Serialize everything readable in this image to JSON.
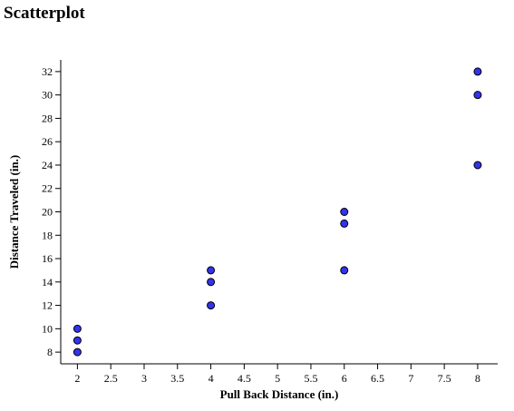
{
  "title": "Scatterplot",
  "chart_data": {
    "type": "scatter",
    "title": "Scatterplot",
    "xlabel": "Pull Back Distance (in.)",
    "ylabel": "Distance Traveled (in.)",
    "xlim": [
      1.75,
      8.3
    ],
    "ylim": [
      7,
      33
    ],
    "xticks": [
      2,
      2.5,
      3,
      3.5,
      4,
      4.5,
      5,
      5.5,
      6,
      6.5,
      7,
      7.5,
      8
    ],
    "xtick_labels": [
      "2",
      "2.5",
      "3",
      "3.5",
      "4",
      "4.5",
      "5",
      "5.5",
      "6",
      "6.5",
      "7",
      "7.5",
      "8"
    ],
    "yticks": [
      8,
      10,
      12,
      14,
      16,
      18,
      20,
      22,
      24,
      26,
      28,
      30,
      32
    ],
    "ytick_labels": [
      "8",
      "10",
      "12",
      "14",
      "16",
      "18",
      "20",
      "22",
      "24",
      "26",
      "28",
      "30",
      "32"
    ],
    "grid": false,
    "marker_color": "#3333ee",
    "marker_edge": "#000000",
    "points": [
      {
        "x": 2,
        "y": 8
      },
      {
        "x": 2,
        "y": 9
      },
      {
        "x": 2,
        "y": 10
      },
      {
        "x": 4,
        "y": 12
      },
      {
        "x": 4,
        "y": 14
      },
      {
        "x": 4,
        "y": 15
      },
      {
        "x": 6,
        "y": 15
      },
      {
        "x": 6,
        "y": 19
      },
      {
        "x": 6,
        "y": 20
      },
      {
        "x": 8,
        "y": 24
      },
      {
        "x": 8,
        "y": 30
      },
      {
        "x": 8,
        "y": 32
      }
    ]
  }
}
